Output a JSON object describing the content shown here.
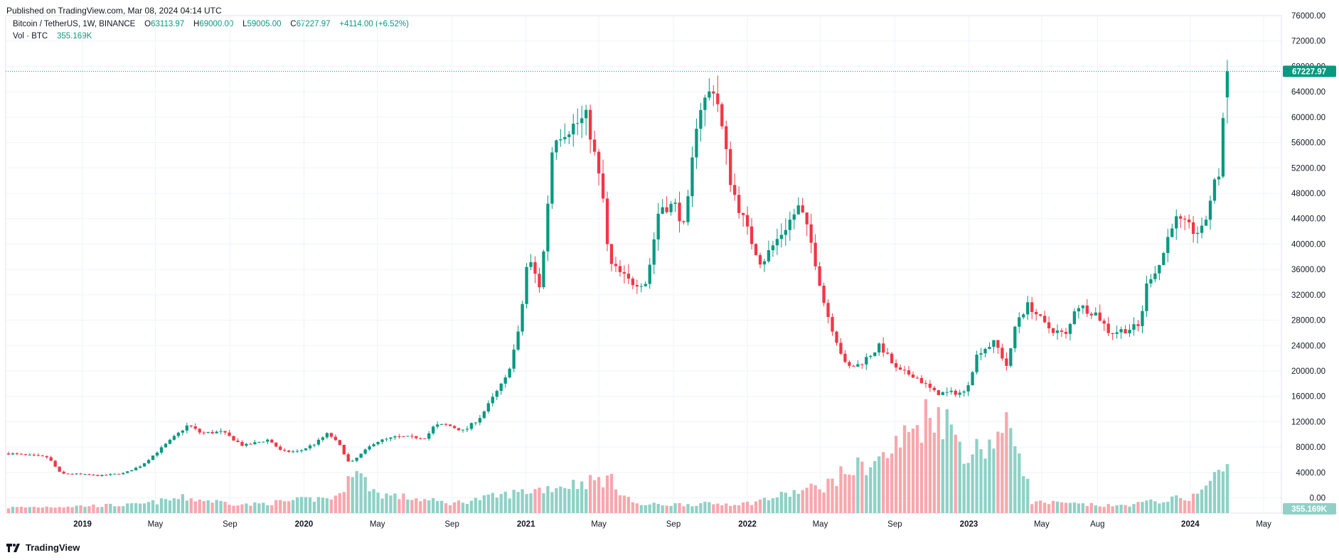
{
  "header": {
    "published": "Published on TradingView.com, Mar 08, 2024 04:14 UTC"
  },
  "legend": {
    "symbol": "Bitcoin / TetherUS, 1W, BINANCE",
    "open_label": "O",
    "open": "63113.97",
    "high_label": "H",
    "high": "69000.00",
    "low_label": "L",
    "low": "59005.00",
    "close_label": "C",
    "close": "67227.97",
    "change": "+4114.00 (+6.52%)",
    "vol_label": "Vol · BTC",
    "vol_value": "355.169K"
  },
  "footer": {
    "brand": "TradingView"
  },
  "colors": {
    "up": "#089981",
    "down": "#f23645",
    "up_vol": "#8fd1c6",
    "down_vol": "#f7a7ad",
    "grid": "#f0f3fa"
  },
  "chart_data": {
    "type": "candlestick",
    "title": "Bitcoin / TetherUS, 1W, BINANCE",
    "interval": "1W",
    "price_axis": {
      "range": [
        -2400,
        76000
      ],
      "ticks": [
        "0.00",
        "4000.00",
        "8000.00",
        "12000.00",
        "16000.00",
        "20000.00",
        "24000.00",
        "28000.00",
        "32000.00",
        "36000.00",
        "40000.00",
        "44000.00",
        "48000.00",
        "52000.00",
        "56000.00",
        "60000.00",
        "64000.00",
        "68000.00",
        "72000.00",
        "76000.00"
      ],
      "last_price_label": "67227.97",
      "volume_label": "355.169K"
    },
    "time_axis": {
      "labels": [
        {
          "text": "2019",
          "date": "2019-01-01",
          "bold": true
        },
        {
          "text": "May",
          "date": "2019-05-01",
          "bold": false
        },
        {
          "text": "Sep",
          "date": "2019-09-01",
          "bold": false
        },
        {
          "text": "2020",
          "date": "2020-01-01",
          "bold": true
        },
        {
          "text": "May",
          "date": "2020-05-01",
          "bold": false
        },
        {
          "text": "Sep",
          "date": "2020-09-01",
          "bold": false
        },
        {
          "text": "2021",
          "date": "2021-01-01",
          "bold": true
        },
        {
          "text": "May",
          "date": "2021-05-01",
          "bold": false
        },
        {
          "text": "Sep",
          "date": "2021-09-01",
          "bold": false
        },
        {
          "text": "2022",
          "date": "2022-01-01",
          "bold": true
        },
        {
          "text": "May",
          "date": "2022-05-01",
          "bold": false
        },
        {
          "text": "Sep",
          "date": "2022-09-01",
          "bold": false
        },
        {
          "text": "2023",
          "date": "2023-01-01",
          "bold": true
        },
        {
          "text": "May",
          "date": "2023-05-01",
          "bold": false
        },
        {
          "text": "Aug",
          "date": "2023-08-01",
          "bold": false
        },
        {
          "text": "2024",
          "date": "2024-01-01",
          "bold": true
        },
        {
          "text": "May",
          "date": "2024-05-01",
          "bold": false
        }
      ]
    },
    "weekly_close_waypoints": [
      [
        "2018-09-01",
        7000
      ],
      [
        "2018-11-05",
        6400
      ],
      [
        "2018-11-26",
        3800
      ],
      [
        "2018-12-17",
        3800
      ],
      [
        "2019-01-28",
        3500
      ],
      [
        "2019-03-11",
        3900
      ],
      [
        "2019-04-08",
        5100
      ],
      [
        "2019-05-13",
        8000
      ],
      [
        "2019-06-24",
        11500
      ],
      [
        "2019-07-15",
        10200
      ],
      [
        "2019-08-19",
        10400
      ],
      [
        "2019-09-23",
        8200
      ],
      [
        "2019-11-04",
        9200
      ],
      [
        "2019-11-25",
        7300
      ],
      [
        "2019-12-23",
        7300
      ],
      [
        "2020-01-20",
        8600
      ],
      [
        "2020-02-10",
        10200
      ],
      [
        "2020-03-02",
        8000
      ],
      [
        "2020-03-16",
        5300
      ],
      [
        "2020-04-27",
        8800
      ],
      [
        "2020-06-01",
        9600
      ],
      [
        "2020-07-20",
        9500
      ],
      [
        "2020-08-03",
        11400
      ],
      [
        "2020-08-24",
        11500
      ],
      [
        "2020-09-21",
        10500
      ],
      [
        "2020-10-19",
        12900
      ],
      [
        "2020-11-09",
        16000
      ],
      [
        "2020-11-30",
        19000
      ],
      [
        "2020-12-21",
        26500
      ],
      [
        "2021-01-04",
        38000
      ],
      [
        "2021-01-25",
        33000
      ],
      [
        "2021-02-15",
        57000
      ],
      [
        "2021-03-08",
        58000
      ],
      [
        "2021-04-12",
        60000
      ],
      [
        "2021-05-10",
        46000
      ],
      [
        "2021-05-17",
        37000
      ],
      [
        "2021-06-21",
        34000
      ],
      [
        "2021-07-19",
        34000
      ],
      [
        "2021-08-09",
        46000
      ],
      [
        "2021-09-06",
        46000
      ],
      [
        "2021-09-20",
        42000
      ],
      [
        "2021-10-11",
        61000
      ],
      [
        "2021-11-08",
        65000
      ],
      [
        "2021-12-06",
        49000
      ],
      [
        "2022-01-03",
        41500
      ],
      [
        "2022-01-24",
        37000
      ],
      [
        "2022-02-14",
        40000
      ],
      [
        "2022-03-28",
        46000
      ],
      [
        "2022-04-18",
        39500
      ],
      [
        "2022-05-09",
        30000
      ],
      [
        "2022-06-13",
        20500
      ],
      [
        "2022-07-04",
        21000
      ],
      [
        "2022-08-08",
        24000
      ],
      [
        "2022-09-05",
        20000
      ],
      [
        "2022-10-03",
        19300
      ],
      [
        "2022-11-07",
        16500
      ],
      [
        "2022-12-26",
        16600
      ],
      [
        "2023-01-16",
        23000
      ],
      [
        "2023-02-13",
        24500
      ],
      [
        "2023-03-06",
        20500
      ],
      [
        "2023-03-20",
        28000
      ],
      [
        "2023-04-10",
        30500
      ],
      [
        "2023-05-08",
        27000
      ],
      [
        "2023-06-12",
        25500
      ],
      [
        "2023-06-26",
        30500
      ],
      [
        "2023-07-31",
        29000
      ],
      [
        "2023-08-21",
        26000
      ],
      [
        "2023-10-09",
        27000
      ],
      [
        "2023-10-23",
        34500
      ],
      [
        "2023-11-13",
        37000
      ],
      [
        "2023-12-04",
        44000
      ],
      [
        "2024-01-08",
        42000
      ],
      [
        "2024-01-22",
        42000
      ],
      [
        "2024-02-05",
        48000
      ],
      [
        "2024-02-19",
        51700
      ],
      [
        "2024-02-26",
        63100
      ],
      [
        "2024-03-04",
        67228
      ]
    ],
    "volume_waypoints_k": [
      [
        "2018-09-01",
        40
      ],
      [
        "2019-04-01",
        60
      ],
      [
        "2019-06-15",
        110
      ],
      [
        "2019-10-01",
        60
      ],
      [
        "2020-03-02",
        120
      ],
      [
        "2020-03-16",
        345
      ],
      [
        "2020-05-01",
        140
      ],
      [
        "2020-09-01",
        70
      ],
      [
        "2021-01-04",
        160
      ],
      [
        "2021-05-17",
        250
      ],
      [
        "2021-07-01",
        60
      ],
      [
        "2022-01-01",
        70
      ],
      [
        "2022-05-09",
        200
      ],
      [
        "2022-06-13",
        300
      ],
      [
        "2022-08-15",
        400
      ],
      [
        "2022-11-07",
        770
      ],
      [
        "2023-01-01",
        420
      ],
      [
        "2023-03-13",
        620
      ],
      [
        "2023-03-27",
        440
      ],
      [
        "2023-04-15",
        80
      ],
      [
        "2023-09-01",
        50
      ],
      [
        "2024-01-08",
        120
      ],
      [
        "2024-03-04",
        355
      ]
    ]
  }
}
